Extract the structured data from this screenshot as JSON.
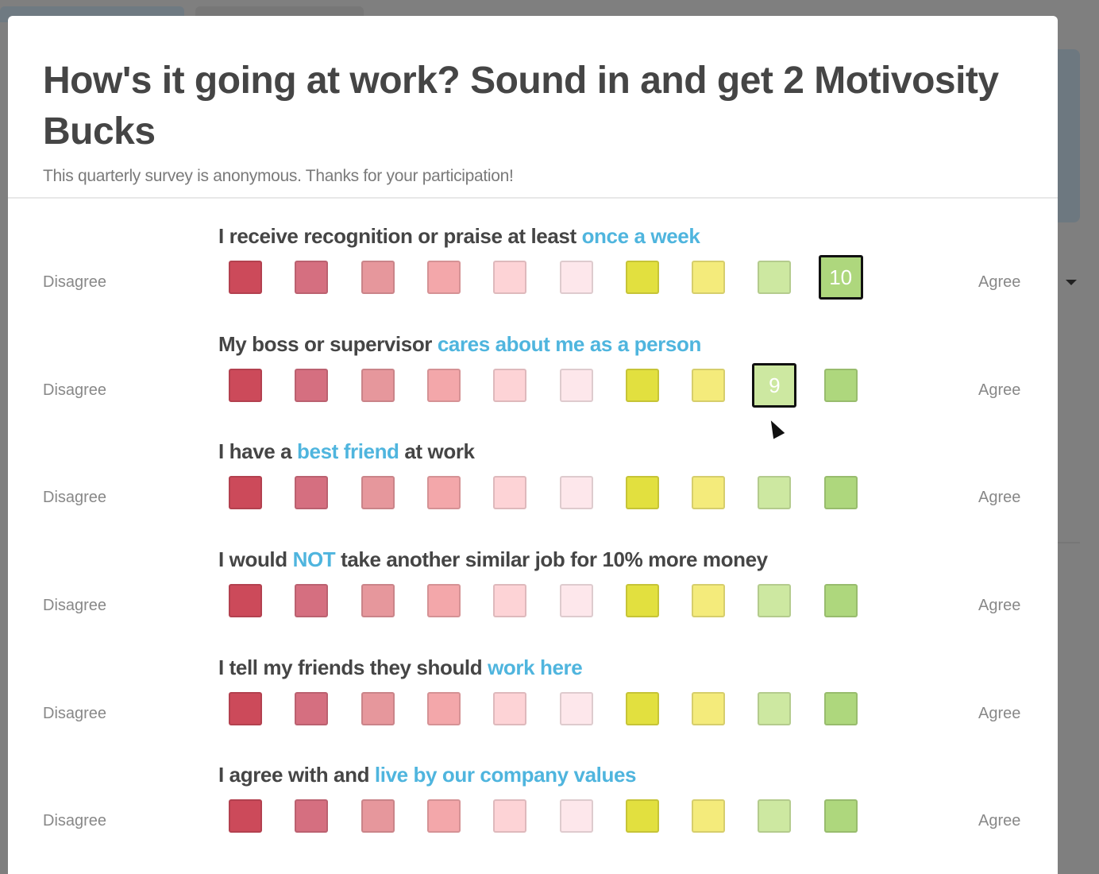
{
  "survey": {
    "title": "How's it going at work? Sound in and get 2 Motivosity Bucks",
    "subtitle": "This quarterly survey is anonymous. Thanks for your participation!",
    "disagree_label": "Disagree",
    "agree_label": "Agree",
    "scale_colors": [
      "#cc4a5a",
      "#d56f80",
      "#e6979c",
      "#f3a7aa",
      "#fdd3d6",
      "#fde7eb",
      "#e2e03f",
      "#f4eb7b",
      "#cde8a1",
      "#aed77d"
    ],
    "questions": [
      {
        "prefix": "I receive recognition or praise at least ",
        "highlight": "once a week",
        "suffix": "",
        "selected": 10
      },
      {
        "prefix": "My boss or supervisor ",
        "highlight": "cares about me as a person",
        "suffix": "",
        "selected": 9
      },
      {
        "prefix": "I have a ",
        "highlight": "best friend",
        "suffix": " at work",
        "selected": null
      },
      {
        "prefix": "I would ",
        "highlight": "NOT",
        "suffix": " take another similar job for 10% more money",
        "selected": null
      },
      {
        "prefix": "I tell my friends they should ",
        "highlight": "work here",
        "suffix": "",
        "selected": null
      },
      {
        "prefix": "I agree with and ",
        "highlight": "live by our company values",
        "suffix": "",
        "selected": null
      }
    ]
  }
}
